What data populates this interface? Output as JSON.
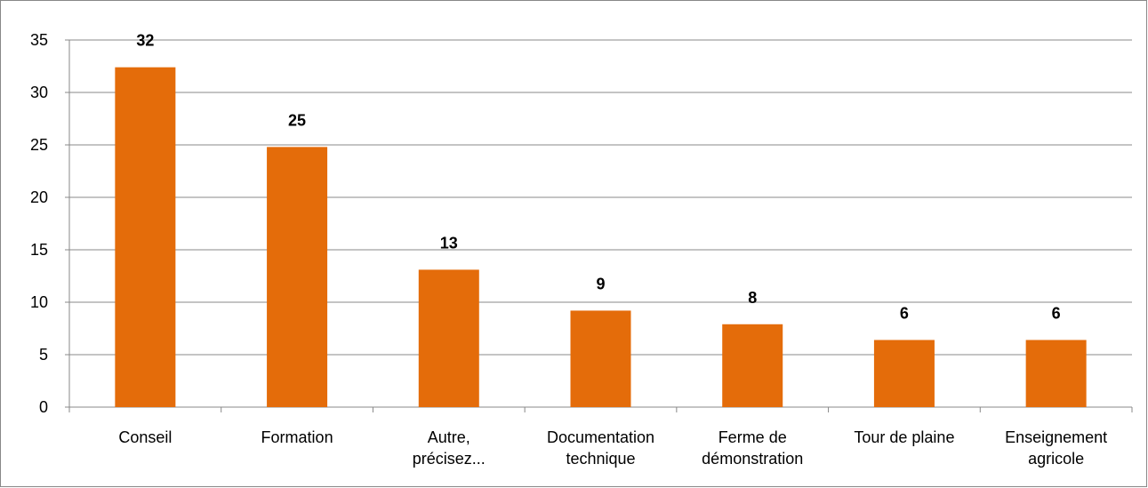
{
  "chart_data": {
    "type": "bar",
    "categories": [
      "Conseil",
      "Formation",
      "Autre,\nprécisez...",
      "Documentation\ntechnique",
      "Ferme de\ndémonstration",
      "Tour de plaine",
      "Enseignement\nagricole"
    ],
    "values": [
      32.4,
      24.8,
      13.1,
      9.2,
      7.9,
      6.4,
      6.4
    ],
    "value_labels": [
      "32",
      "25",
      "13",
      "9",
      "8",
      "6",
      "6"
    ],
    "color": "#e46c0a",
    "ylim": [
      0,
      35
    ],
    "yticks": [
      0,
      5,
      10,
      15,
      20,
      25,
      30,
      35
    ],
    "grid": true
  }
}
